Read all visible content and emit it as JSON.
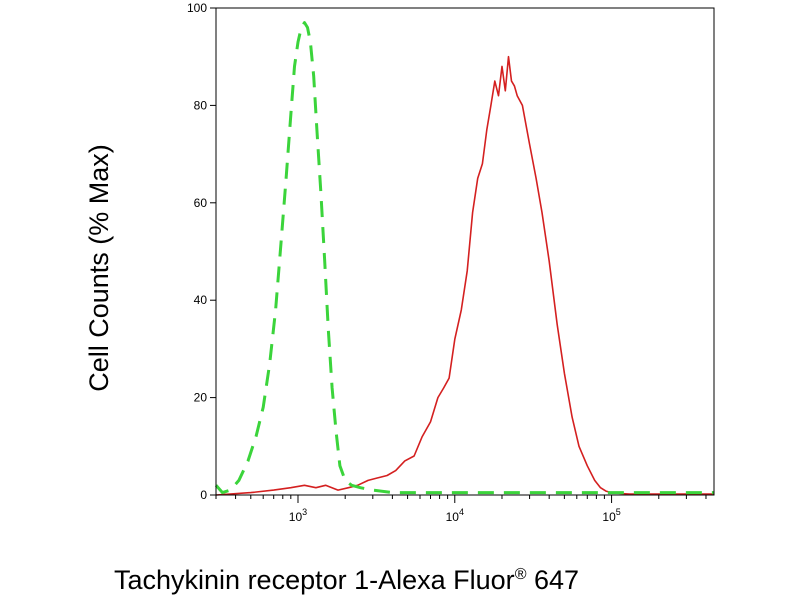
{
  "chart_data": {
    "type": "line",
    "xlabel": "Tachykinin receptor 1-Alexa Fluor",
    "xlabel_superscript": "®",
    "xlabel_suffix": " 647",
    "ylabel": "Cell Counts (% Max)",
    "x_scale": "log",
    "xlim": [
      300,
      450000
    ],
    "ylim": [
      0,
      100
    ],
    "y_ticks": [
      0,
      20,
      40,
      60,
      80,
      100
    ],
    "x_ticks": [
      {
        "value": 1000,
        "base": "10",
        "exp": "3"
      },
      {
        "value": 10000,
        "base": "10",
        "exp": "4"
      },
      {
        "value": 100000,
        "base": "10",
        "exp": "5"
      }
    ],
    "grid": false,
    "legend": "none",
    "series": [
      {
        "color": "#d42020",
        "style": "solid",
        "x": [
          300,
          500,
          700,
          900,
          1100,
          1300,
          1500,
          1800,
          2100,
          2400,
          2800,
          3200,
          3700,
          4200,
          4800,
          5500,
          6200,
          7000,
          7800,
          8500,
          9200,
          10000,
          11000,
          12000,
          13000,
          14000,
          15000,
          16000,
          17000,
          18000,
          19000,
          20000,
          21000,
          22000,
          23000,
          24000,
          25000,
          27000,
          30000,
          33000,
          36000,
          40000,
          45000,
          50000,
          56000,
          62000,
          70000,
          78000,
          85000,
          92000,
          100000,
          115000,
          130000,
          160000,
          220000,
          450000
        ],
        "y": [
          0,
          0.5,
          1,
          1.5,
          2,
          1.5,
          2,
          1,
          1.5,
          2,
          3,
          3.5,
          4,
          5,
          7,
          8,
          12,
          15,
          20,
          22,
          24,
          32,
          38,
          46,
          58,
          65,
          68,
          75,
          80,
          85,
          82,
          88,
          83,
          90,
          85,
          84,
          82,
          80,
          72,
          65,
          58,
          48,
          35,
          25,
          16,
          10,
          6,
          3,
          1.5,
          0.8,
          0.5,
          0.3,
          0.2,
          0.2,
          0.2,
          0.2
        ]
      },
      {
        "color": "#3bd43b",
        "style": "dashed",
        "x": [
          300,
          330,
          370,
          420,
          480,
          540,
          600,
          660,
          720,
          780,
          840,
          900,
          950,
          1000,
          1050,
          1100,
          1150,
          1200,
          1260,
          1320,
          1400,
          1480,
          1560,
          1650,
          1750,
          1850,
          2000,
          2200,
          2500,
          3000,
          4000,
          6000,
          10000,
          20000,
          50000,
          100000,
          450000
        ],
        "y": [
          2,
          0.5,
          1,
          3,
          7,
          12,
          18,
          27,
          38,
          52,
          65,
          78,
          88,
          93,
          96,
          97,
          96,
          93,
          86,
          75,
          62,
          48,
          34,
          22,
          13,
          6,
          3,
          2,
          1.5,
          1,
          0.5,
          0.5,
          0.5,
          0.5,
          0.5,
          0.5,
          0.5
        ]
      }
    ]
  }
}
